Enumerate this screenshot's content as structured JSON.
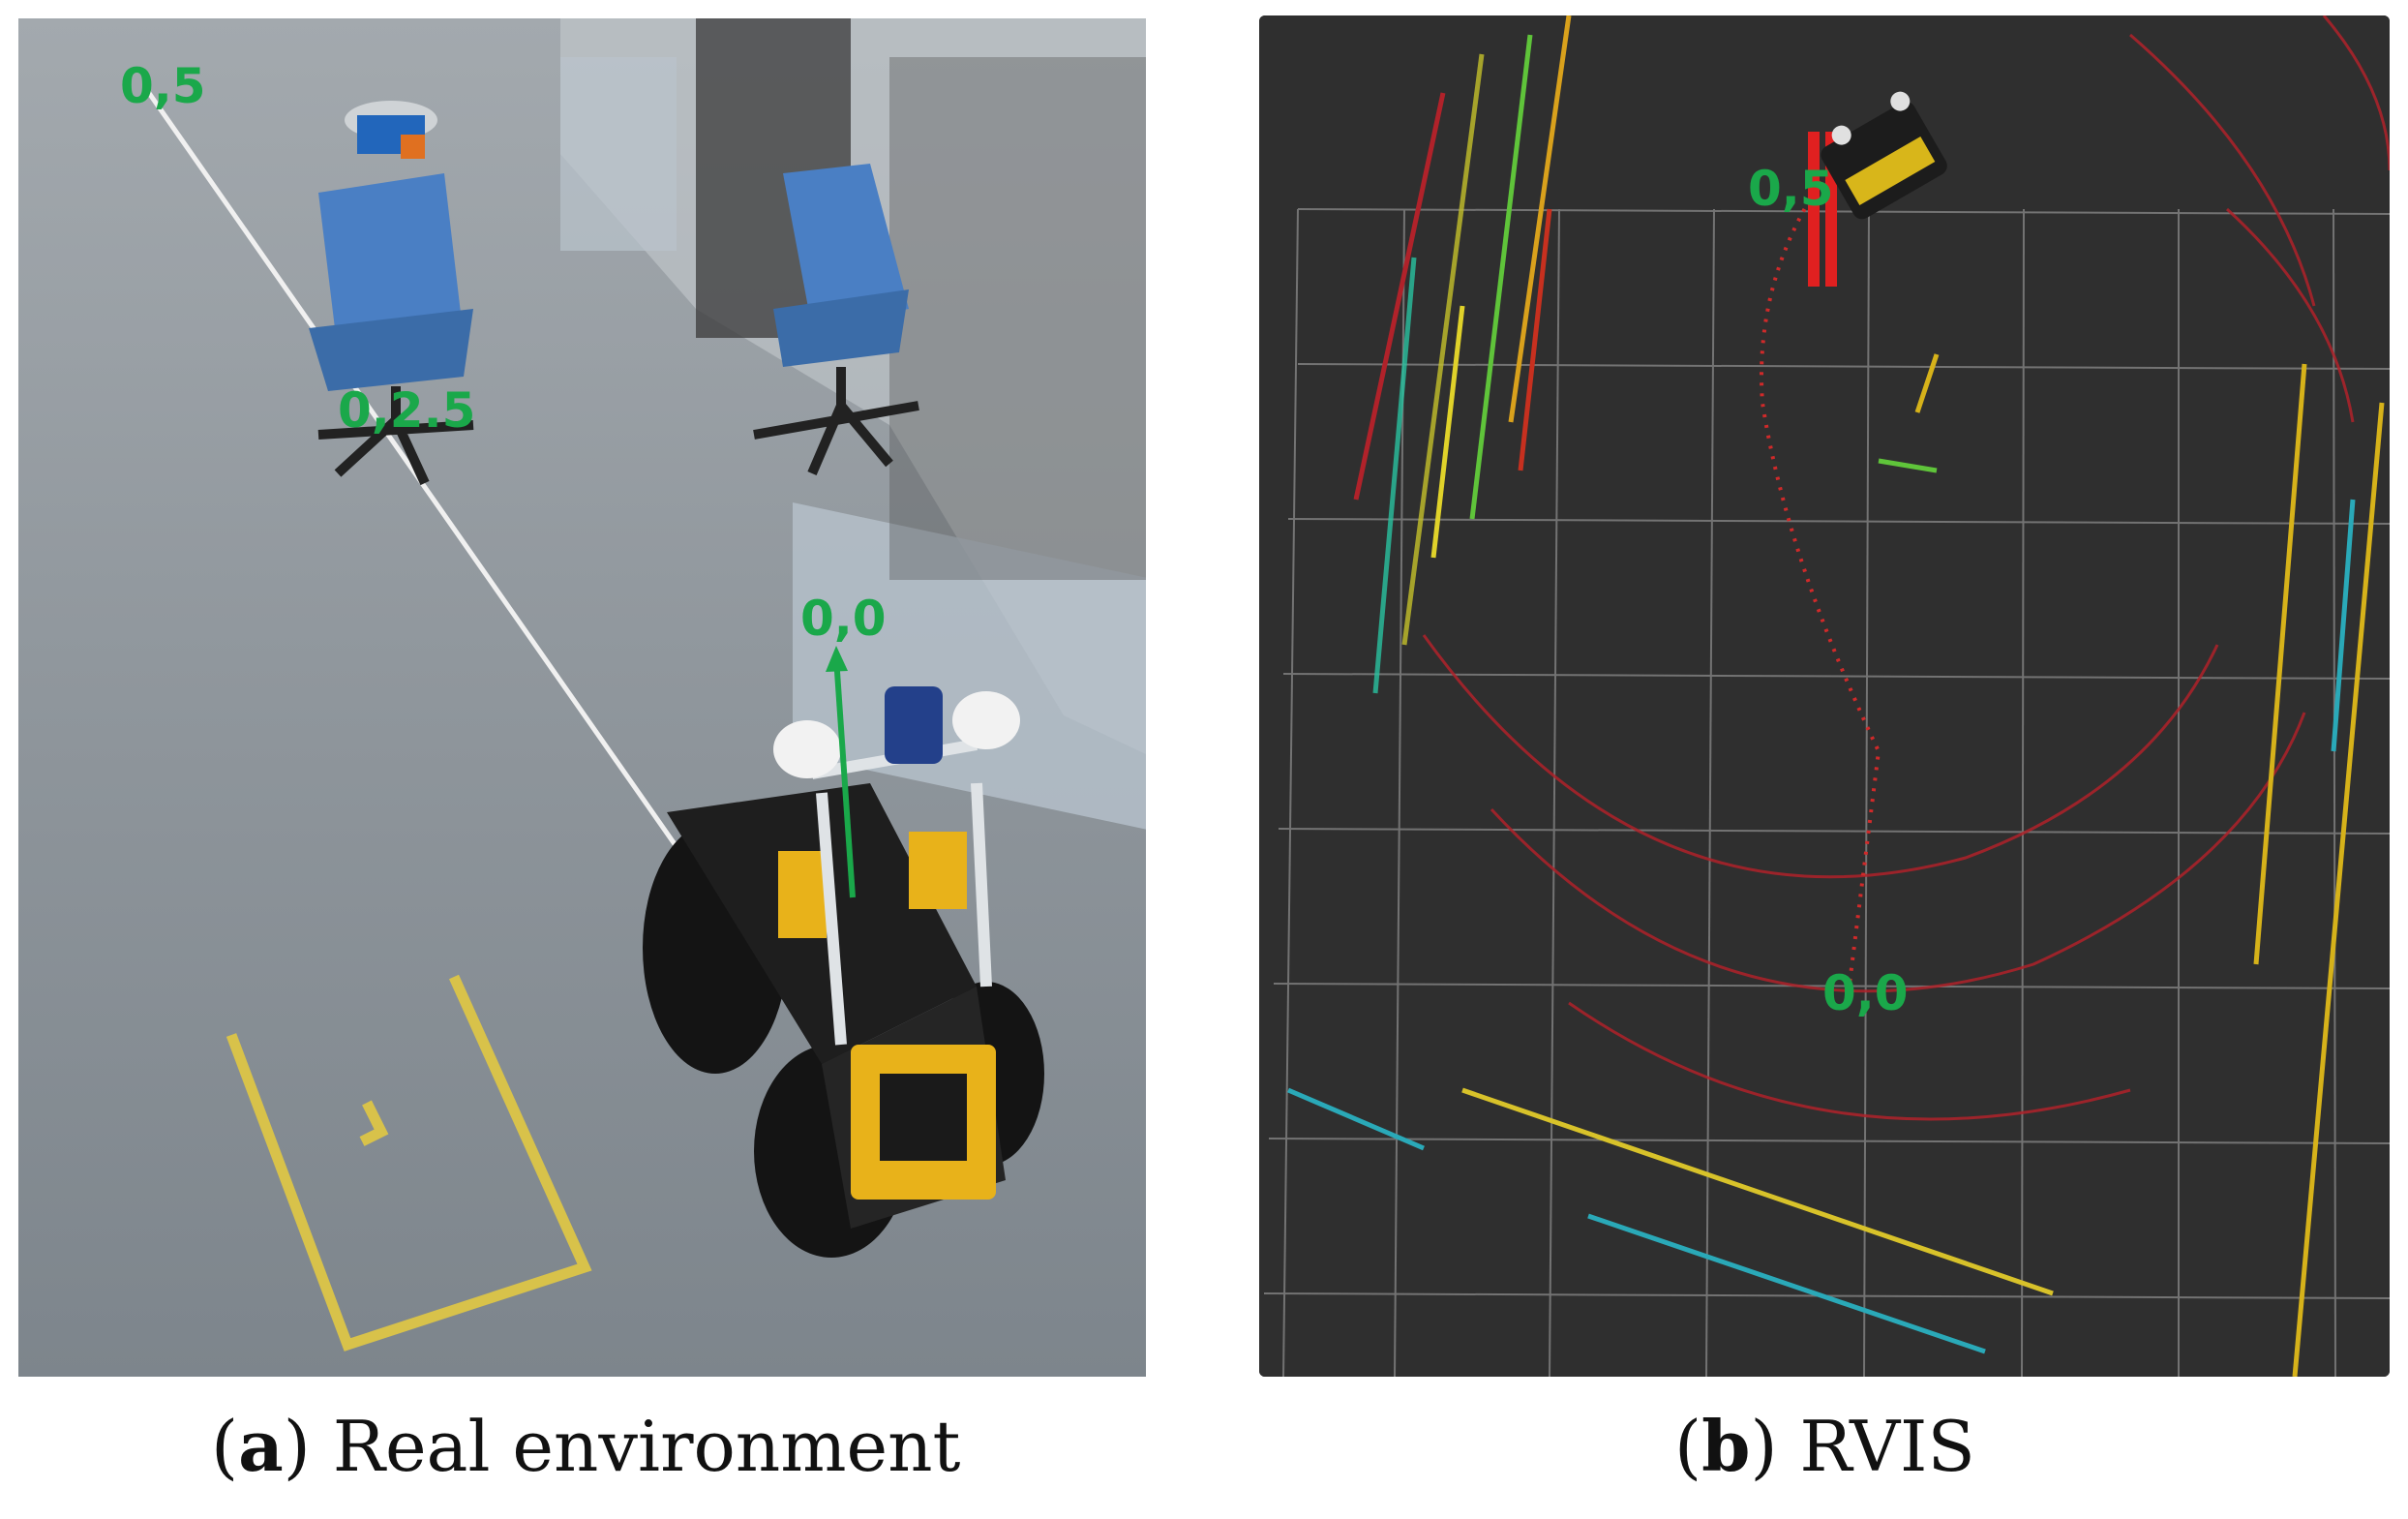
{
  "panel_a": {
    "markers": {
      "start": "0,5",
      "mid": "0,2.5",
      "origin": "0,0"
    },
    "caption": {
      "open": "(",
      "letter": "a",
      "close": ")",
      "text": " Real environment"
    }
  },
  "panel_b": {
    "markers": {
      "start": "0,5",
      "origin": "0,0"
    },
    "caption": {
      "open": "(",
      "letter": "b",
      "close": ")",
      "text": " RVIS"
    }
  },
  "colors": {
    "marker_green": "#1aa84a",
    "floor": "#8c939a",
    "rviz_background": "#2f2f2f",
    "grid": "#8a8a8a",
    "laser_red": "#b0222a",
    "robot_yellow": "#e8b21a",
    "tape_yellow": "#d8c24a"
  }
}
